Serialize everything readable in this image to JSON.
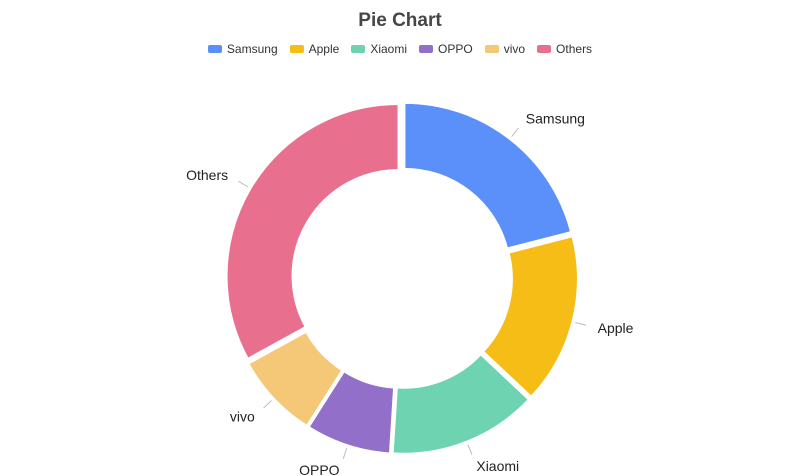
{
  "chart_data": {
    "type": "pie",
    "title": "Pie Chart",
    "legend_position": "top",
    "donut": true,
    "categories": [
      "Samsung",
      "Apple",
      "Xiaomi",
      "OPPO",
      "vivo",
      "Others"
    ],
    "values": [
      21,
      16,
      14,
      8,
      8,
      33
    ],
    "colors": [
      "#5b8ff9",
      "#f6bd16",
      "#6dd3b0",
      "#9270ca",
      "#f5c878",
      "#e8708e"
    ]
  }
}
